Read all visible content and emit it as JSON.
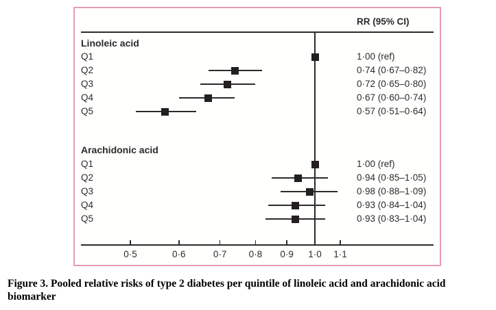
{
  "caption": "Figure 3. Pooled relative risks of type 2 diabetes per quintile of linoleic acid and arachidonic acid biomarker",
  "colors": {
    "frame_border": "#e59cb1",
    "ink": "#2b2a29",
    "marker": "#231f20",
    "background": "#ffffff"
  },
  "chart_data": {
    "type": "scatter",
    "subtype": "forest-plot",
    "title": "Pooled relative risks of type 2 diabetes per quintile of linoleic acid and arachidonic acid biomarker",
    "header": "RR (95% CI)",
    "x_axis": {
      "scale": "log",
      "xlim": [
        0.45,
        1.18
      ],
      "tick_values": [
        0.5,
        0.6,
        0.7,
        0.8,
        0.9,
        1.0,
        1.1
      ],
      "tick_labels": [
        "0·5",
        "0·6",
        "0·7",
        "0·8",
        "0·9",
        "1·0",
        "1·1"
      ],
      "reference_line": 1.0
    },
    "groups": [
      {
        "label": "Linoleic acid",
        "rows": [
          {
            "label": "Q1",
            "rr": 1.0,
            "ci_low": null,
            "ci_high": null,
            "display": "1·00 (ref)"
          },
          {
            "label": "Q2",
            "rr": 0.74,
            "ci_low": 0.67,
            "ci_high": 0.82,
            "display": "0·74 (0·67–0·82)"
          },
          {
            "label": "Q3",
            "rr": 0.72,
            "ci_low": 0.65,
            "ci_high": 0.8,
            "display": "0·72 (0·65–0·80)"
          },
          {
            "label": "Q4",
            "rr": 0.67,
            "ci_low": 0.6,
            "ci_high": 0.74,
            "display": "0·67 (0·60–0·74)"
          },
          {
            "label": "Q5",
            "rr": 0.57,
            "ci_low": 0.51,
            "ci_high": 0.64,
            "display": "0·57 (0·51–0·64)"
          }
        ]
      },
      {
        "label": "Arachidonic acid",
        "rows": [
          {
            "label": "Q1",
            "rr": 1.0,
            "ci_low": null,
            "ci_high": null,
            "display": "1·00 (ref)"
          },
          {
            "label": "Q2",
            "rr": 0.94,
            "ci_low": 0.85,
            "ci_high": 1.05,
            "display": "0·94 (0·85–1·05)"
          },
          {
            "label": "Q3",
            "rr": 0.98,
            "ci_low": 0.88,
            "ci_high": 1.09,
            "display": "0·98 (0·88–1·09)"
          },
          {
            "label": "Q4",
            "rr": 0.93,
            "ci_low": 0.84,
            "ci_high": 1.04,
            "display": "0·93 (0·84–1·04)"
          },
          {
            "label": "Q5",
            "rr": 0.93,
            "ci_low": 0.83,
            "ci_high": 1.04,
            "display": "0·93 (0·83–1·04)"
          }
        ]
      }
    ]
  }
}
